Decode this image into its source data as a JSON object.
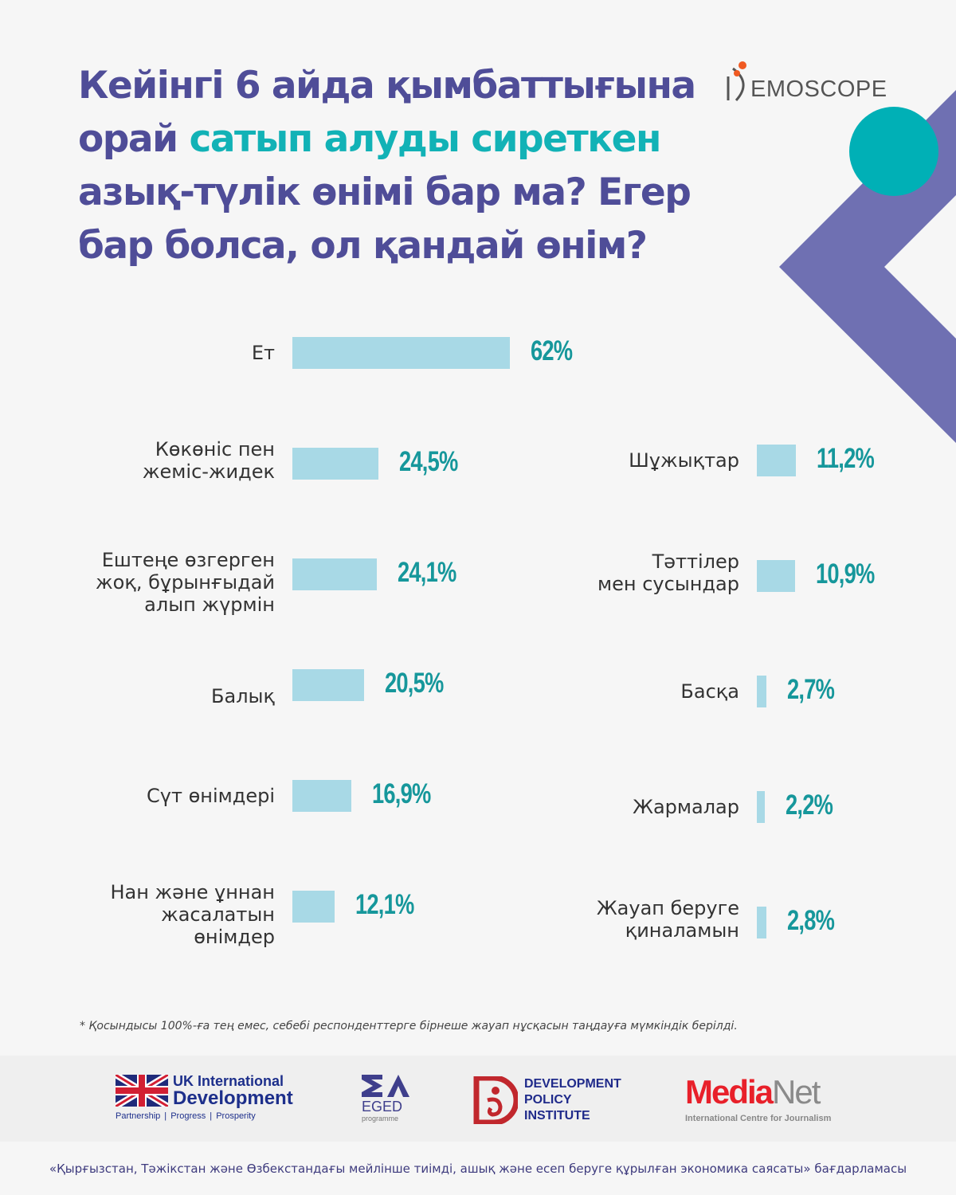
{
  "header": {
    "title_part1": "Кейінгі 6 айда қымбаттығына орай ",
    "title_highlight": "сатып алуды сиреткен",
    "title_part2": " азық-түлік өнімі бар ма? Егер бар болса, ол қандай өнім?",
    "brand_logo": "EMOSCOPE",
    "colors": {
      "title": "#4f4d98",
      "highlight": "#12b2b6",
      "bar": "#a8d9e6",
      "value": "#16979b",
      "chevron": "#6f70b2",
      "circle": "#00b0b6"
    }
  },
  "chart_data": {
    "type": "bar",
    "orientation": "horizontal",
    "title": "Кейінгі 6 айда қымбаттығына орай сатып алуды сиреткен азық-түлік өнімі бар ма? Егер бар болса, ол қандай өнім?",
    "unit": "%",
    "xlim": [
      0,
      100
    ],
    "grid": false,
    "legend": "none",
    "columns": [
      {
        "position": "left",
        "categories": [
          "Ет",
          "Көкөніс пен\nжеміс-жидек",
          "Ештеңе өзгерген\nжоқ, бұрынғыдай\nалып жүрмін",
          "Балық",
          "Сүт өнімдері",
          "Нан және ұннан\nжасалатын\nөнімдер"
        ],
        "values": [
          62,
          24.5,
          24.1,
          20.5,
          16.9,
          12.1
        ],
        "labels": [
          "62%",
          "24,5%",
          "24,1%",
          "20,5%",
          "16,9%",
          "12,1%"
        ]
      },
      {
        "position": "right",
        "categories": [
          "Шұжықтар",
          "Тәттілер\nмен сусындар",
          "Басқа",
          "Жармалар",
          "Жауап беруге\nқиналамын"
        ],
        "values": [
          11.2,
          10.9,
          2.7,
          2.2,
          2.8
        ],
        "labels": [
          "11,2%",
          "10,9%",
          "2,7%",
          "2,2%",
          "2,8%"
        ]
      }
    ]
  },
  "footnote": "* Қосындысы 100%-ға тең емес, себебі респонденттерге бірнеше жауап нұсқасын таңдауға мүмкіндік берілді.",
  "logos": {
    "ukid_line1": "UK International",
    "ukid_line2": "Development",
    "ukid_tagline": "Partnership   |   Progress   |   Prosperity",
    "eged_name": "EGED",
    "eged_sub": "programme",
    "dpi_name": "DEVELOPMENT\nPOLICY\nINSTITUTE",
    "medianet_media": "Media",
    "medianet_net": "Net",
    "medianet_sub": "International Centre for Journalism"
  },
  "programme_text": "«Қырғызстан, Тәжікстан және Өзбекстандағы мейлінше тиімді, ашық және есеп беруге құрылған экономика саясаты» бағдарламасы"
}
